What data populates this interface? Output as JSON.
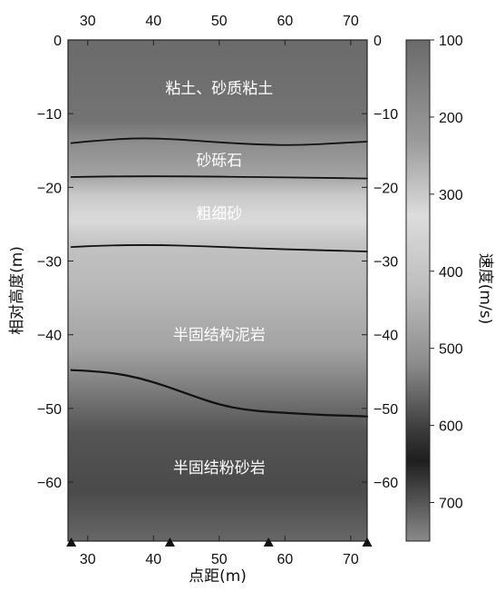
{
  "chart_data": {
    "type": "heatmap",
    "x_axis": {
      "label": "点距(m)",
      "range": [
        27,
        72.5
      ],
      "ticks": [
        30,
        40,
        50,
        60,
        70
      ],
      "tick_labels": [
        "30",
        "40",
        "50",
        "60",
        "70"
      ]
    },
    "y_axis": {
      "label": "相对高度(m)",
      "range": [
        -68,
        0
      ],
      "ticks": [
        0,
        -10,
        -20,
        -30,
        -40,
        -50,
        -60
      ],
      "tick_labels": [
        "0",
        "-10",
        "-20",
        "-30",
        "-40",
        "-50",
        "-60"
      ]
    },
    "colorbar": {
      "label": "速度(m/s)",
      "range": [
        100,
        750
      ],
      "ticks": [
        100,
        200,
        300,
        400,
        500,
        600,
        700
      ],
      "tick_labels": [
        "100",
        "200",
        "300",
        "400",
        "500",
        "600",
        "700"
      ]
    },
    "boundaries": [
      {
        "x": [
          27.5,
          32,
          38,
          44,
          50,
          56,
          62,
          68,
          72.5
        ],
        "y": [
          -14,
          -13.6,
          -13.3,
          -13.5,
          -13.9,
          -14.2,
          -14.3,
          -14.0,
          -13.8
        ]
      },
      {
        "x": [
          27.5,
          35,
          45,
          55,
          65,
          72.5
        ],
        "y": [
          -18.6,
          -18.5,
          -18.5,
          -18.6,
          -18.7,
          -18.8
        ]
      },
      {
        "x": [
          27.5,
          32,
          40,
          48,
          56,
          64,
          72.5
        ],
        "y": [
          -28.1,
          -27.9,
          -27.8,
          -28.0,
          -28.3,
          -28.5,
          -28.7
        ]
      },
      {
        "x": [
          27.5,
          30,
          34,
          38,
          42,
          46,
          50,
          54,
          58,
          62,
          66,
          70,
          72.5
        ],
        "y": [
          -44.8,
          -44.9,
          -45.2,
          -45.9,
          -47.0,
          -48.3,
          -49.5,
          -50.2,
          -50.5,
          -50.7,
          -50.9,
          -51.0,
          -51.1
        ]
      }
    ],
    "layers": [
      {
        "label": "粘土、砂质粘土",
        "x": 50,
        "y": -6.5
      },
      {
        "label": "砂砾石",
        "x": 50,
        "y": -16.3
      },
      {
        "label": "粗细砂",
        "x": 50,
        "y": -23.5
      },
      {
        "label": "半固结构泥岩",
        "x": 50,
        "y": -40
      },
      {
        "label": "半固结粉砂岩",
        "x": 50,
        "y": -58
      }
    ],
    "station_markers_x": [
      27.5,
      42.5,
      57.5,
      72.5
    ]
  },
  "colors": {
    "frame": "#222222",
    "boundary": "#111111",
    "marker": "#111111"
  }
}
